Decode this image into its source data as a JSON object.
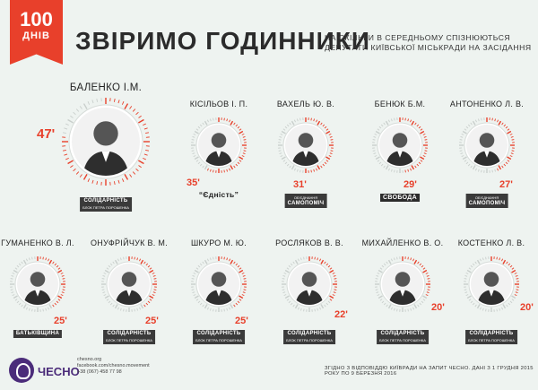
{
  "badge": {
    "number": "100",
    "label": "ДНІВ"
  },
  "header": {
    "title": "ЗВІРИМО ГОДИННИКИ",
    "subtitle": "НА СКІЛЬКИ В СЕРЕДНЬОМУ СПІЗНЮЮТЬСЯ ДЕПУТАТИ КИЇВСЬКОЇ МІСЬКРАДИ НА ЗАСІДАННЯ"
  },
  "colors": {
    "accent": "#e8402b",
    "brand": "#4b2c7a"
  },
  "deputies": [
    {
      "name": "БАЛЕНКО І.М.",
      "minutes": "47'",
      "party": "Солідарність",
      "party_sub": "блок Петра Порошенка"
    },
    {
      "name": "КІСІЛЬОВ І. П.",
      "minutes": "35'",
      "party": "“Єдність”",
      "party_sub": ""
    },
    {
      "name": "ВАХЕЛЬ Ю. В.",
      "minutes": "31'",
      "party": "Самопоміч",
      "party_sub": "об'єднання"
    },
    {
      "name": "БЕНЮК Б.М.",
      "minutes": "29'",
      "party": "Свобода",
      "party_sub": ""
    },
    {
      "name": "АНТОНЕНКО Л. В.",
      "minutes": "27'",
      "party": "Самопоміч",
      "party_sub": "об'єднання"
    },
    {
      "name": "ГУМАНЕНКО В. Л.",
      "minutes": "25'",
      "party": "Батьківщина",
      "party_sub": ""
    },
    {
      "name": "ОНУФРІЙЧУК В. М.",
      "minutes": "25'",
      "party": "Солідарність",
      "party_sub": "блок Петра Порошенка"
    },
    {
      "name": "ШКУРО М. Ю.",
      "minutes": "25'",
      "party": "Солідарність",
      "party_sub": "блок Петра Порошенка"
    },
    {
      "name": "РОСЛЯКОВ В. В.",
      "minutes": "22'",
      "party": "Солідарність",
      "party_sub": "блок Петра Порошенка"
    },
    {
      "name": "МИХАЙЛЕНКО В. О.",
      "minutes": "20'",
      "party": "Солідарність",
      "party_sub": "блок Петра Порошенка"
    },
    {
      "name": "КОСТЕНКО Л. В.",
      "minutes": "20'",
      "party": "Солідарність",
      "party_sub": "блок Петра Порошенка"
    }
  ],
  "footer": {
    "brand": "ЧЕСНО",
    "site": "chesno.org",
    "facebook": "facebook.com/chesno.movement",
    "phone": "+38 (067) 458 77 98",
    "source": "ЗГІДНО З ВІДПОВІДДЮ КИЇВРАДИ НА ЗАПИТ ЧЕСНО. ДАНІ З 1 ГРУДНЯ 2015 РОКУ ПО 9 БЕРЕЗНЯ 2016"
  }
}
